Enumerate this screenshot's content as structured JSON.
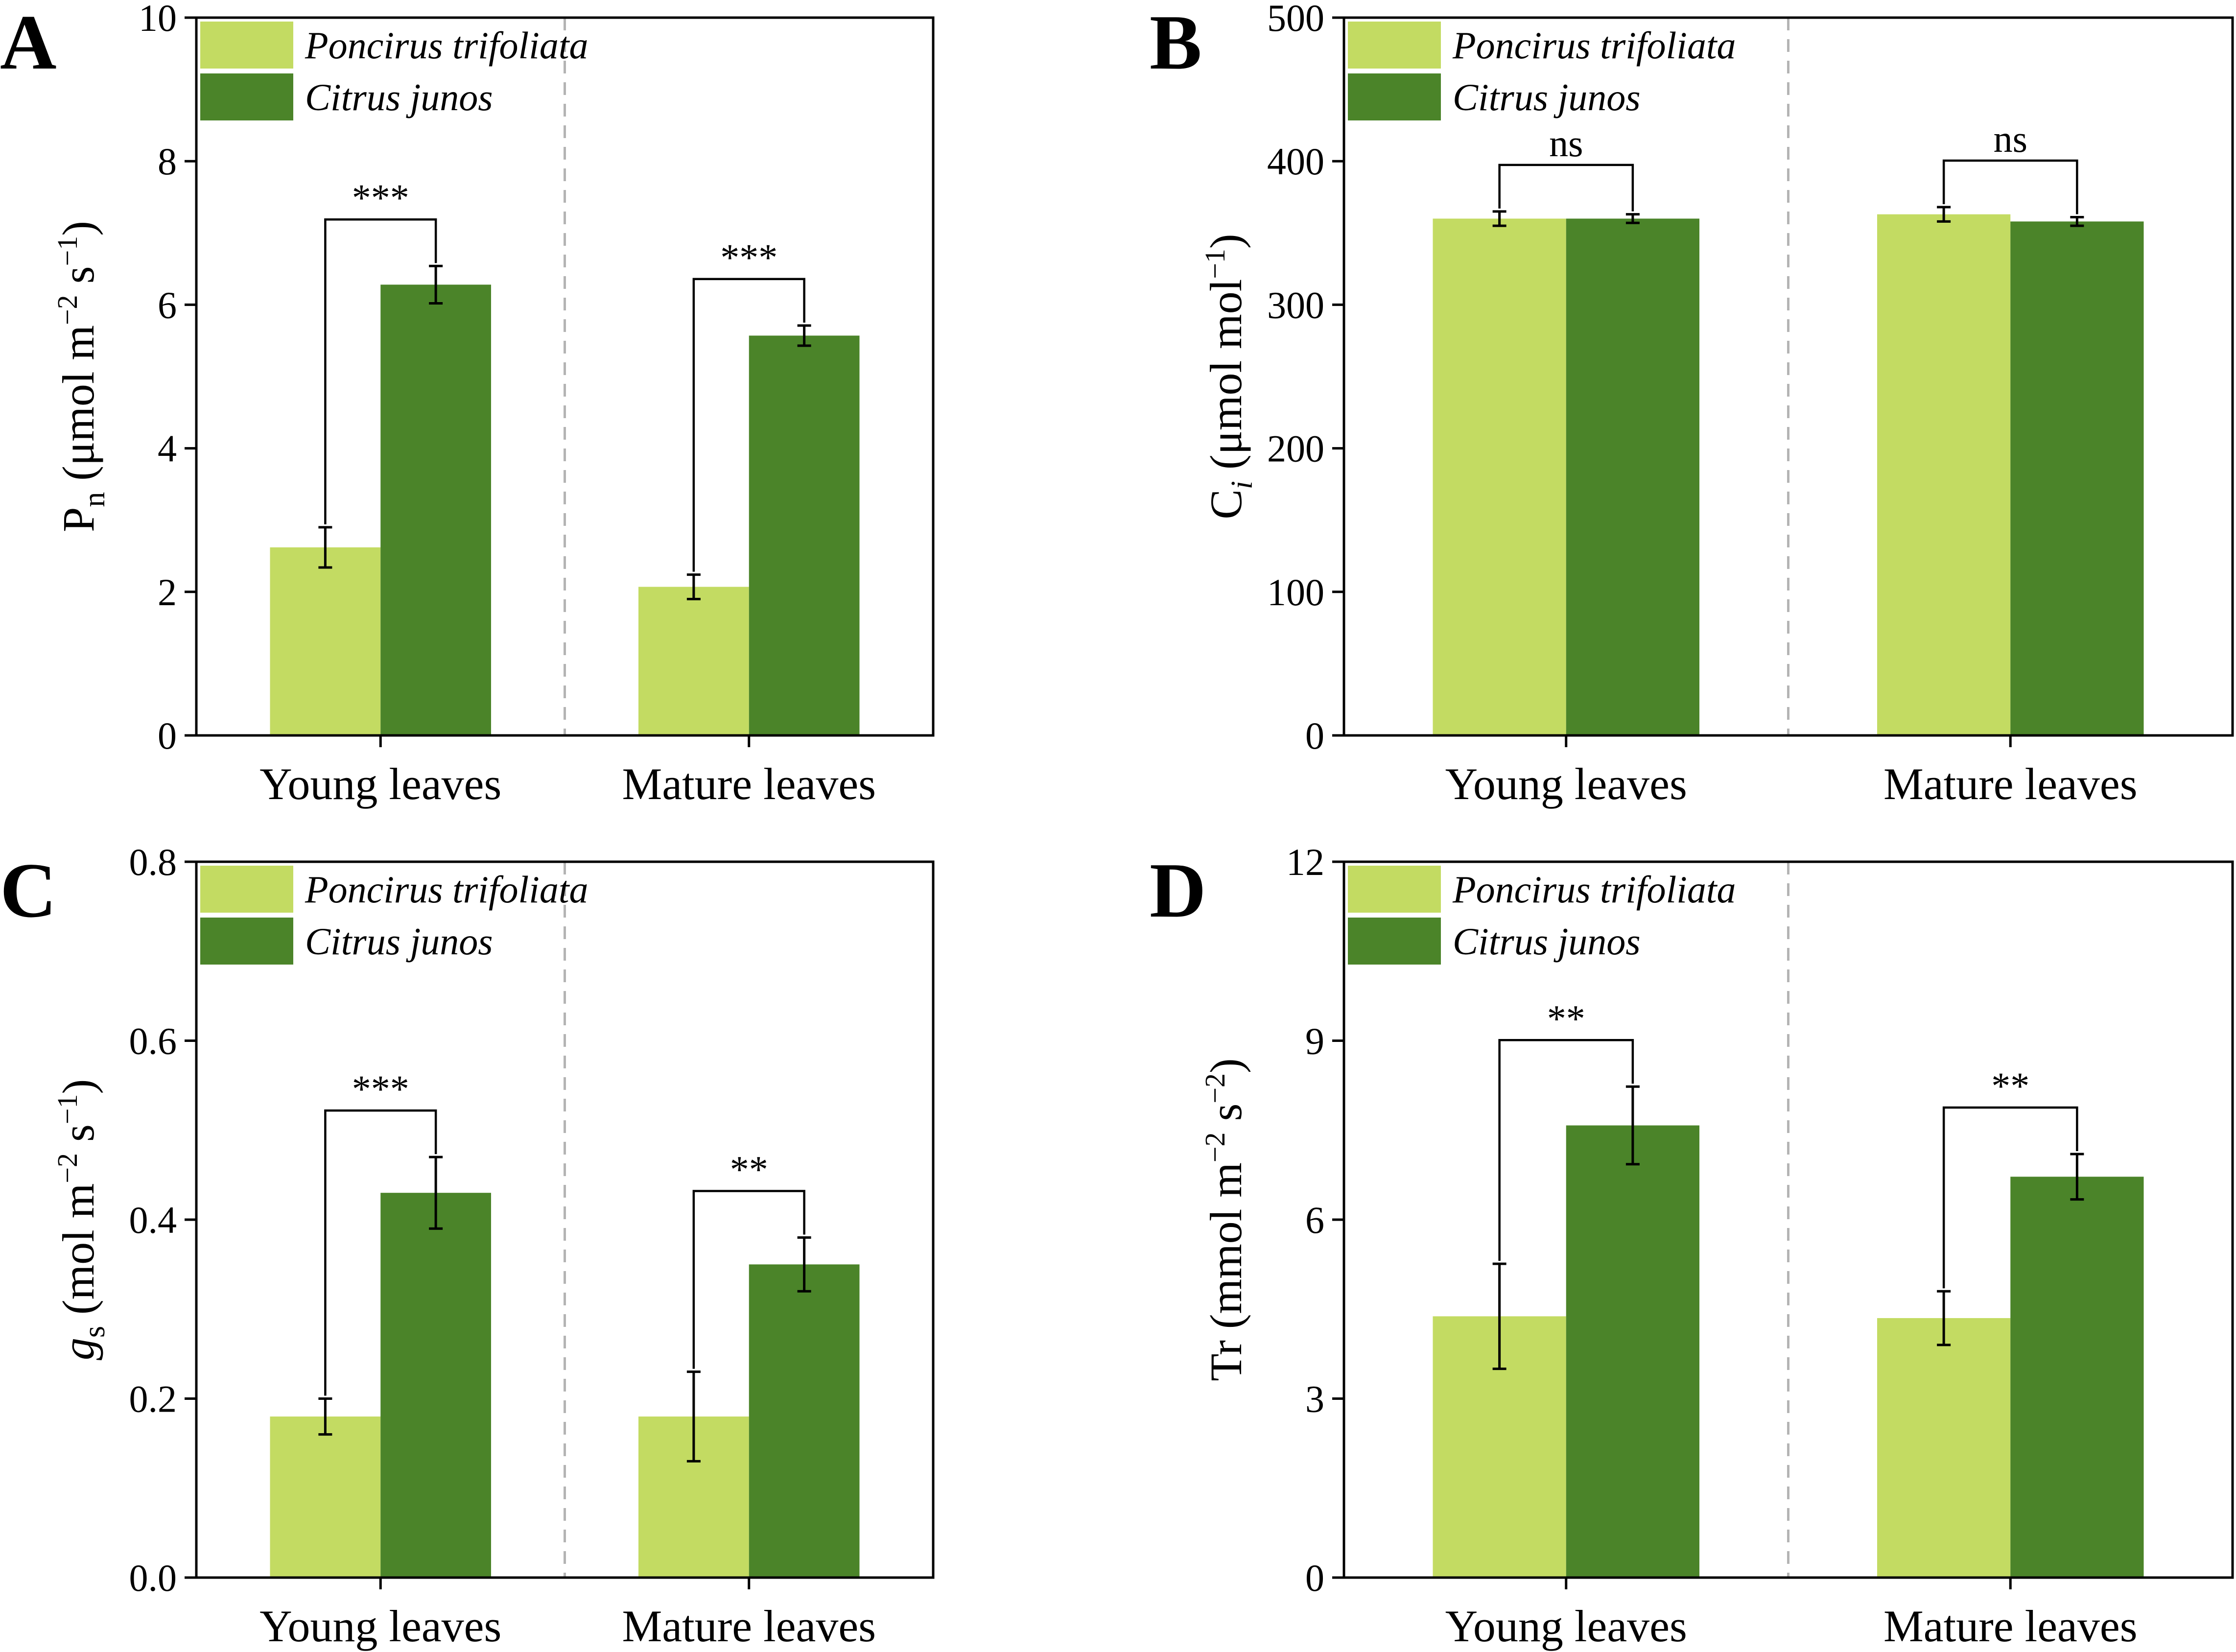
{
  "colors": {
    "light_green": "#c3db62",
    "dark_green": "#4b8429",
    "axis": "#000000",
    "divider": "#b4b4b4"
  },
  "legend": [
    "Poncirus trifoliata",
    "Citrus junos"
  ],
  "categories": [
    "Young leaves",
    "Mature leaves"
  ],
  "chart_data": [
    {
      "panel": "A",
      "type": "bar",
      "ylabel": {
        "main": "P",
        "sub": "n",
        "units": [
          {
            "t": " (μmol m",
            "k": "n"
          },
          {
            "t": "−2",
            "k": "sup"
          },
          {
            "t": " s",
            "k": "n"
          },
          {
            "t": "−1",
            "k": "sup"
          },
          {
            "t": ")",
            "k": "n"
          }
        ]
      },
      "ylim": [
        0,
        10
      ],
      "yticks": [
        "0",
        "2",
        "4",
        "6",
        "8",
        "10"
      ],
      "ytick_values": [
        0,
        2,
        4,
        6,
        8,
        10
      ],
      "series": [
        {
          "name": "Poncirus trifoliata",
          "values": [
            2.62,
            2.07
          ],
          "errors": [
            0.28,
            0.17
          ]
        },
        {
          "name": "Citrus junos",
          "values": [
            6.28,
            5.57
          ],
          "errors": [
            0.26,
            0.14
          ]
        }
      ],
      "significance": [
        "***",
        "***"
      ]
    },
    {
      "panel": "B",
      "type": "bar",
      "ylabel": {
        "main": "C",
        "sub": "i",
        "sub_italic": true,
        "units": [
          {
            "t": " (μmol mol",
            "k": "n"
          },
          {
            "t": "−1",
            "k": "sup"
          },
          {
            "t": ")",
            "k": "n"
          }
        ]
      },
      "ylim": [
        0,
        500
      ],
      "yticks": [
        "0",
        "100",
        "200",
        "300",
        "400",
        "500"
      ],
      "ytick_values": [
        0,
        100,
        200,
        300,
        400,
        500
      ],
      "series": [
        {
          "name": "Poncirus trifoliata",
          "values": [
            360,
            363
          ],
          "errors": [
            5,
            5
          ]
        },
        {
          "name": "Citrus junos",
          "values": [
            360,
            358
          ],
          "errors": [
            3,
            3
          ]
        }
      ],
      "significance": [
        "ns",
        "ns"
      ]
    },
    {
      "panel": "C",
      "type": "bar",
      "ylabel": {
        "main": "g",
        "main_italic": true,
        "sub": "s",
        "units": [
          {
            "t": " (mol m",
            "k": "n"
          },
          {
            "t": "−2",
            "k": "sup"
          },
          {
            "t": " s",
            "k": "n"
          },
          {
            "t": "−1",
            "k": "sup"
          },
          {
            "t": ")",
            "k": "n"
          }
        ]
      },
      "ylim": [
        0,
        0.8
      ],
      "yticks": [
        "0.0",
        "0.2",
        "0.4",
        "0.6",
        "0.8"
      ],
      "ytick_values": [
        0,
        0.2,
        0.4,
        0.6,
        0.8
      ],
      "series": [
        {
          "name": "Poncirus trifoliata",
          "values": [
            0.18,
            0.18
          ],
          "errors": [
            0.02,
            0.05
          ]
        },
        {
          "name": "Citrus junos",
          "values": [
            0.43,
            0.35
          ],
          "errors": [
            0.04,
            0.03
          ]
        }
      ],
      "significance": [
        "***",
        "**"
      ]
    },
    {
      "panel": "D",
      "type": "bar",
      "ylabel": {
        "main": "Tr",
        "sub": "",
        "units": [
          {
            "t": " (mmol m",
            "k": "n"
          },
          {
            "t": "−2",
            "k": "sup"
          },
          {
            "t": " s",
            "k": "n"
          },
          {
            "t": "−2",
            "k": "sup"
          },
          {
            "t": ")",
            "k": "n"
          }
        ]
      },
      "ylim": [
        0,
        12
      ],
      "yticks": [
        "0",
        "3",
        "6",
        "9",
        "12"
      ],
      "ytick_values": [
        0,
        3,
        6,
        9,
        12
      ],
      "series": [
        {
          "name": "Poncirus trifoliata",
          "values": [
            4.38,
            4.35
          ],
          "errors": [
            0.88,
            0.45
          ]
        },
        {
          "name": "Citrus junos",
          "values": [
            7.58,
            6.72
          ],
          "errors": [
            0.65,
            0.38
          ]
        }
      ],
      "significance": [
        "**",
        "**"
      ]
    }
  ]
}
